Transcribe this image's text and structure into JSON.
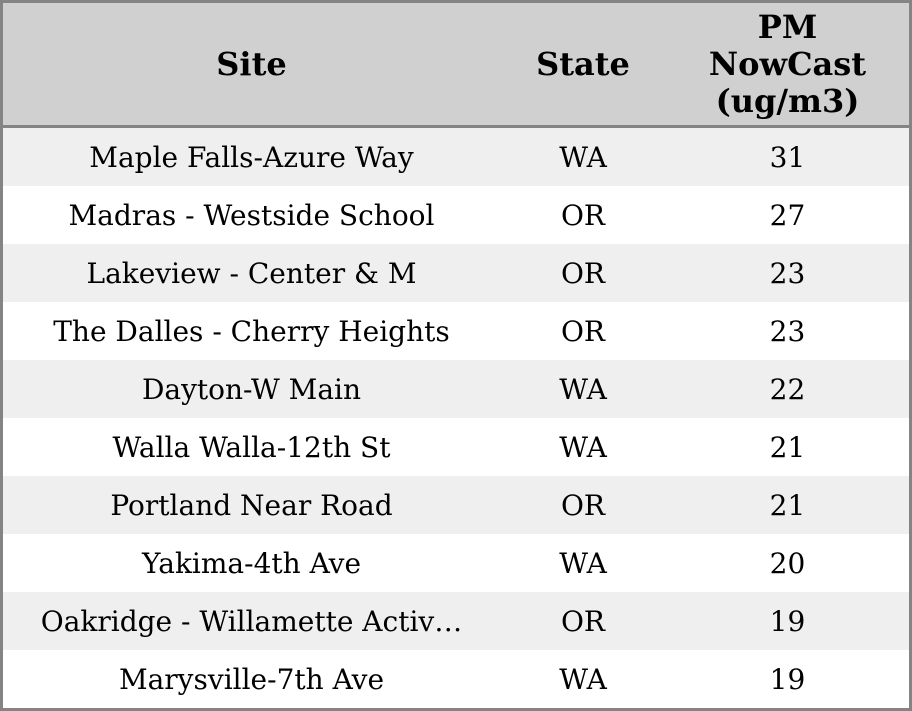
{
  "chart_data": {
    "type": "table",
    "columns": [
      "Site",
      "State",
      "PM NowCast (ug/m3)"
    ],
    "rows": [
      {
        "site": "Maple Falls-Azure Way",
        "state": "WA",
        "pm_nowcast": "31"
      },
      {
        "site": "Madras - Westside School",
        "state": "OR",
        "pm_nowcast": "27"
      },
      {
        "site": "Lakeview - Center & M",
        "state": "OR",
        "pm_nowcast": "23"
      },
      {
        "site": "The Dalles - Cherry Heights",
        "state": "OR",
        "pm_nowcast": "23"
      },
      {
        "site": "Dayton-W Main",
        "state": "WA",
        "pm_nowcast": "22"
      },
      {
        "site": "Walla Walla-12th St",
        "state": "WA",
        "pm_nowcast": "21"
      },
      {
        "site": "Portland Near Road",
        "state": "OR",
        "pm_nowcast": "21"
      },
      {
        "site": "Yakima-4th Ave",
        "state": "WA",
        "pm_nowcast": "20"
      },
      {
        "site": "Oakridge - Willamette Activ…",
        "state": "OR",
        "pm_nowcast": "19"
      },
      {
        "site": "Marysville-7th Ave",
        "state": "WA",
        "pm_nowcast": "19"
      }
    ],
    "layout": {
      "first_data_row_shaded": true
    }
  },
  "colors": {
    "header_bg": "#d0d0d0",
    "row_alt_bg": "#efefef",
    "row_bg": "#ffffff",
    "border": "#848484",
    "text": "#000000"
  }
}
